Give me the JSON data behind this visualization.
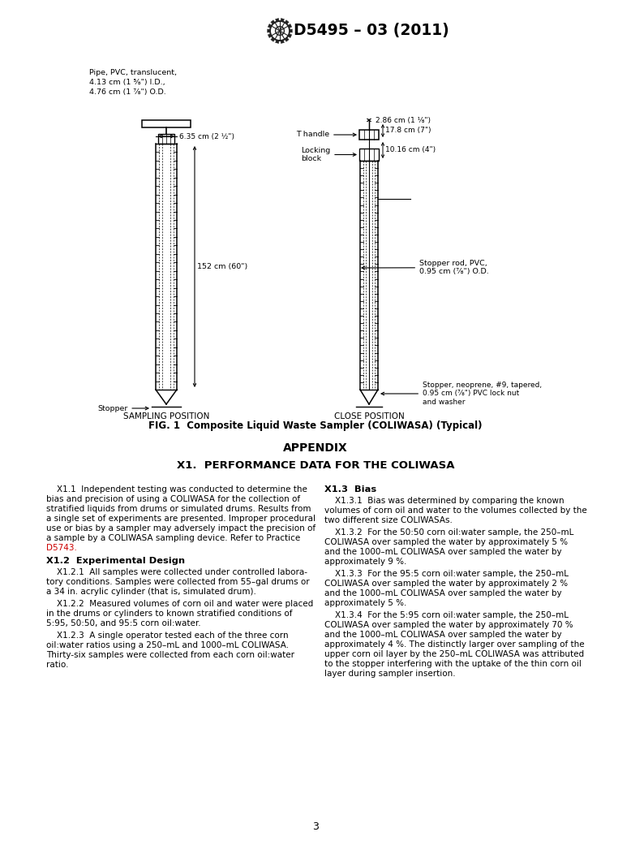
{
  "title": "D5495 – 03 (2011)",
  "page_number": "3",
  "background_color": "#ffffff",
  "text_color": "#000000",
  "fig_caption": "FIG. 1  Composite Liquid Waste Sampler (COLIWASA) (Typical)",
  "sampling_position_label": "SAMPLING POSITION",
  "close_position_label": "CLOSE POSITION",
  "appendix_title": "APPENDIX",
  "appendix_subtitle": "X1.  PERFORMANCE DATA FOR THE COLIWASA",
  "d5743_color": "#cc0000",
  "header_pipe_text": "Pipe, PVC, translucent,\n4.13 cm (1 ⅝\") I.D.,\n4.76 cm (1 ⅞\") O.D.",
  "dim_635": "6.35 cm (2 ½\")",
  "dim_152": "152 cm (60\")",
  "dim_286": "2.86 cm (1 ⅛\")",
  "dim_178": "17.8 cm (7\")",
  "dim_1016": "10.16 cm (4\")",
  "label_thandle": "T handle",
  "label_locking": "Locking\nblock",
  "label_stopper_rod": "Stopper rod, PVC,\n0.95 cm (⅞\") O.D.",
  "label_stopper_left": "Stopper",
  "label_stopper_right": "Stopper, neoprene, #9, tapered,\n0.95 cm (⅞\") PVC lock nut\nand washer",
  "left_lines_p1": [
    "    X1.1  Independent testing was conducted to determine the",
    "bias and precision of using a COLIWASA for the collection of",
    "stratified liquids from drums or simulated drums. Results from",
    "a single set of experiments are presented. Improper procedural",
    "use or bias by a sampler may adversely impact the precision of",
    "a sample by a COLIWASA sampling device. Refer to Practice"
  ],
  "left_d5743": "D5743.",
  "left_x12_head": "X1.2  Experimental Design",
  "left_lines_121": [
    "    X1.2.1  All samples were collected under controlled labora-",
    "tory conditions. Samples were collected from 55–gal drums or",
    "a 34 in. acrylic cylinder (that is, simulated drum)."
  ],
  "left_lines_122": [
    "    X1.2.2  Measured volumes of corn oil and water were placed",
    "in the drums or cylinders to known stratified conditions of",
    "5:95, 50:50, and 95:5 corn oil:water."
  ],
  "left_lines_123": [
    "    X1.2.3  A single operator tested each of the three corn",
    "oil:water ratios using a 250–mL and 1000–mL COLIWASA.",
    "Thirty-six samples were collected from each corn oil:water",
    "ratio."
  ],
  "right_x13_head": "X1.3  Bias",
  "right_lines_131": [
    "    X1.3.1  Bias was determined by comparing the known",
    "volumes of corn oil and water to the volumes collected by the",
    "two different size COLIWASAs."
  ],
  "right_lines_132": [
    "    X1.3.2  For the 50:50 corn oil:water sample, the 250–mL",
    "COLIWASA over sampled the water by approximately 5 %",
    "and the 1000–mL COLIWASA over sampled the water by",
    "approximately 9 %."
  ],
  "right_lines_133": [
    "    X1.3.3  For the 95:5 corn oil:water sample, the 250–mL",
    "COLIWASA over sampled the water by approximately 2 %",
    "and the 1000–mL COLIWASA over sampled the water by",
    "approximately 5 %."
  ],
  "right_lines_134": [
    "    X1.3.4  For the 5:95 corn oil:water sample, the 250–mL",
    "COLIWASA over sampled the water by approximately 70 %",
    "and the 1000–mL COLIWASA over sampled the water by",
    "approximately 4 %. The distinctly larger over sampling of the",
    "upper corn oil layer by the 250–mL COLIWASA was attributed",
    "to the stopper interfering with the uptake of the thin corn oil",
    "layer during sampler insertion."
  ]
}
